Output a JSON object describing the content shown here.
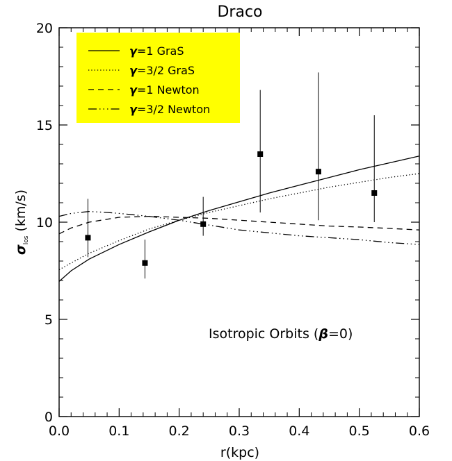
{
  "chart_data": {
    "type": "line",
    "title": "Draco",
    "xlabel": "r(kpc)",
    "ylabel": "σ",
    "ylabel_sub": "los",
    "ylabel_unit": "(km/s)",
    "xlim": [
      0.0,
      0.6
    ],
    "ylim": [
      0,
      20
    ],
    "x_ticks": [
      "0.0",
      "0.1",
      "0.2",
      "0.3",
      "0.4",
      "0.5",
      "0.6"
    ],
    "y_ticks": [
      "0",
      "5",
      "10",
      "15",
      "20"
    ],
    "grid": false,
    "legend_position": "top-left",
    "legend_background": "#ffff00",
    "annotation_text": "Isotropic Orbits (",
    "annotation_symbol": "β",
    "annotation_tail": "=0)",
    "series": [
      {
        "name": "γ=1 GraS",
        "legend_symbol": "γ",
        "legend_rest": "=1 GraS",
        "dash": "solid",
        "x": [
          0.0,
          0.02,
          0.05,
          0.1,
          0.15,
          0.2,
          0.25,
          0.3,
          0.35,
          0.4,
          0.45,
          0.5,
          0.55,
          0.6
        ],
        "y": [
          6.95,
          7.5,
          8.1,
          8.85,
          9.5,
          10.1,
          10.6,
          11.05,
          11.5,
          11.9,
          12.3,
          12.7,
          13.05,
          13.4
        ]
      },
      {
        "name": "γ=3/2 GraS",
        "legend_symbol": "γ",
        "legend_rest": "=3/2 GraS",
        "dash": "dotted",
        "x": [
          0.0,
          0.02,
          0.05,
          0.1,
          0.15,
          0.2,
          0.25,
          0.3,
          0.35,
          0.4,
          0.45,
          0.5,
          0.55,
          0.6
        ],
        "y": [
          7.55,
          7.9,
          8.4,
          9.05,
          9.65,
          10.1,
          10.5,
          10.85,
          11.2,
          11.5,
          11.8,
          12.05,
          12.3,
          12.5
        ]
      },
      {
        "name": "γ=1 Newton",
        "legend_symbol": "γ",
        "legend_rest": "=1 Newton",
        "dash": "dashed",
        "x": [
          0.0,
          0.02,
          0.05,
          0.1,
          0.15,
          0.2,
          0.25,
          0.3,
          0.35,
          0.4,
          0.45,
          0.5,
          0.55,
          0.6
        ],
        "y": [
          9.4,
          9.7,
          10.0,
          10.25,
          10.3,
          10.25,
          10.2,
          10.1,
          10.0,
          9.9,
          9.8,
          9.75,
          9.68,
          9.6
        ]
      },
      {
        "name": "γ=3/2 Newton",
        "legend_symbol": "γ",
        "legend_rest": "=3/2 Newton",
        "dash": "dash-dot-dot",
        "x": [
          0.0,
          0.02,
          0.05,
          0.08,
          0.1,
          0.15,
          0.2,
          0.25,
          0.3,
          0.35,
          0.4,
          0.45,
          0.5,
          0.55,
          0.6
        ],
        "y": [
          10.3,
          10.45,
          10.55,
          10.5,
          10.45,
          10.3,
          10.1,
          9.85,
          9.6,
          9.45,
          9.3,
          9.2,
          9.1,
          8.95,
          8.85
        ]
      }
    ],
    "data_points": {
      "x": [
        0.048,
        0.143,
        0.24,
        0.335,
        0.432,
        0.525
      ],
      "y": [
        9.2,
        7.9,
        9.9,
        13.5,
        12.6,
        11.5
      ],
      "yerr_low": [
        8.2,
        7.1,
        9.3,
        10.5,
        10.1,
        10.0
      ],
      "yerr_high": [
        11.2,
        9.1,
        11.3,
        16.8,
        17.7,
        15.5
      ]
    }
  }
}
